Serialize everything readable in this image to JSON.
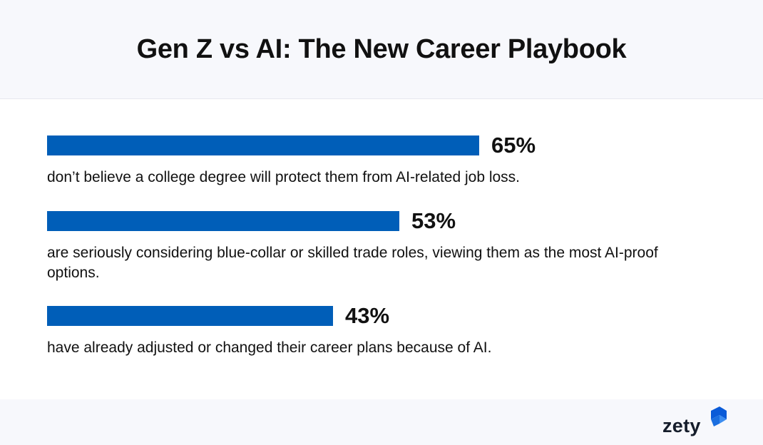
{
  "header": {
    "title": "Gen Z vs AI: The New Career Playbook"
  },
  "chart_data": {
    "type": "bar",
    "orientation": "horizontal",
    "title": "Gen Z vs AI: The New Career Playbook",
    "unit": "%",
    "bar_color": "#005eb8",
    "xlim": [
      0,
      100
    ],
    "categories": [
      "don’t believe a college degree will protect them from AI-related job loss.",
      "are seriously considering blue-collar or skilled trade roles, viewing them as the most AI-proof options.",
      "have already adjusted or changed their career plans because of AI."
    ],
    "values": [
      65,
      53,
      43
    ],
    "value_labels": [
      "65%",
      "53%",
      "43%"
    ]
  },
  "footer": {
    "logo_text": "zety",
    "logo_icon": "zety-logo-icon"
  }
}
